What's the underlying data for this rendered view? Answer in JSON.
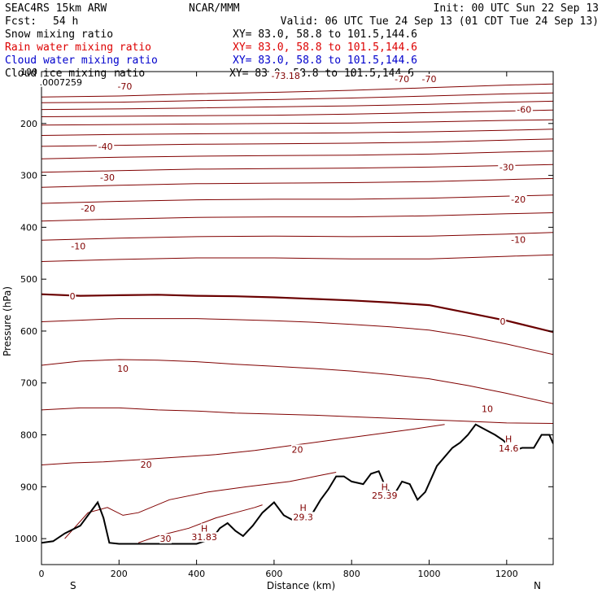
{
  "header": {
    "model": "SEAC4RS 15km ARW",
    "org": "NCAR/MMM",
    "init": "Init: 00 UTC Sun 22 Sep 13",
    "fcst_label": "Fcst:",
    "fcst_value": "54 h",
    "valid": "Valid: 06 UTC Tue 24 Sep 13 (01 CDT Tue 24 Sep 13)"
  },
  "fields": [
    {
      "name": "Snow mixing ratio",
      "xy": "XY=  83.0, 58.8 to 101.5,144.6",
      "color": "#000000"
    },
    {
      "name": "Rain water mixing ratio",
      "xy": "XY=  83.0, 58.8 to 101.5,144.6",
      "color": "#dd0000"
    },
    {
      "name": "Cloud water mixing ratio",
      "xy": "XY=  83.0, 58.8 to 101.5,144.6",
      "color": "#0000cc"
    },
    {
      "name": "Cloud ice mixing ratio",
      "xy": "XY=  83.0, 58.8 to 101.5,144.6",
      "color": "#000000"
    }
  ],
  "chart_data": {
    "type": "line",
    "title": "SEAC4RS 15km ARW",
    "xlabel": "Distance (km)",
    "ylabel": "Pressure (hPa)",
    "xlim": [
      0,
      1320
    ],
    "ylim": [
      1050,
      100
    ],
    "x_ticks": [
      "0",
      "200",
      "400",
      "600",
      "800",
      "1000",
      "1200"
    ],
    "y_ticks": [
      "100",
      "200",
      "300",
      "400",
      "500",
      "600",
      "700",
      "800",
      "900",
      "1000"
    ],
    "x_end_labels": {
      "left": "S",
      "right": "N"
    },
    "contour_color": "#800000",
    "contour_bold_color": "#6a0000",
    "series": [
      {
        "level": -70,
        "x": [
          0,
          200,
          400,
          600,
          800,
          1000,
          1200,
          1320
        ],
        "y": [
          149,
          147,
          143,
          140,
          136,
          131,
          126,
          124
        ]
      },
      {
        "level": -65,
        "x": [
          0,
          200,
          400,
          600,
          800,
          1000,
          1200,
          1320
        ],
        "y": [
          160,
          159,
          156,
          154,
          151,
          147,
          143,
          141
        ]
      },
      {
        "level": -60,
        "x": [
          0,
          200,
          400,
          600,
          800,
          1000,
          1200,
          1320
        ],
        "y": [
          173,
          172,
          170,
          168,
          166,
          163,
          159,
          157
        ]
      },
      {
        "level": -55,
        "x": [
          0,
          200,
          400,
          600,
          800,
          1000,
          1200,
          1320
        ],
        "y": [
          187,
          186,
          185,
          184,
          182,
          179,
          176,
          174
        ]
      },
      {
        "level": -50,
        "x": [
          0,
          200,
          400,
          600,
          800,
          1000,
          1200,
          1320
        ],
        "y": [
          203,
          202,
          201,
          200,
          199,
          197,
          194,
          193
        ]
      },
      {
        "level": -45,
        "x": [
          0,
          200,
          400,
          600,
          800,
          1000,
          1200,
          1320
        ],
        "y": [
          223,
          221,
          220,
          219,
          218,
          216,
          213,
          211
        ]
      },
      {
        "level": -40,
        "x": [
          0,
          200,
          400,
          600,
          800,
          1000,
          1200,
          1320
        ],
        "y": [
          244,
          242,
          240,
          239,
          238,
          236,
          232,
          230
        ]
      },
      {
        "level": -35,
        "x": [
          0,
          200,
          400,
          600,
          800,
          1000,
          1200,
          1320
        ],
        "y": [
          268,
          265,
          263,
          262,
          261,
          259,
          255,
          253
        ]
      },
      {
        "level": -30,
        "x": [
          0,
          200,
          400,
          600,
          800,
          1000,
          1200,
          1320
        ],
        "y": [
          294,
          291,
          288,
          287,
          286,
          284,
          281,
          279
        ]
      },
      {
        "level": -25,
        "x": [
          0,
          200,
          400,
          600,
          800,
          1000,
          1200,
          1320
        ],
        "y": [
          323,
          319,
          316,
          315,
          314,
          312,
          308,
          306
        ]
      },
      {
        "level": -20,
        "x": [
          0,
          200,
          400,
          600,
          800,
          1000,
          1200,
          1320
        ],
        "y": [
          354,
          350,
          347,
          346,
          346,
          344,
          340,
          338
        ]
      },
      {
        "level": -15,
        "x": [
          0,
          200,
          400,
          600,
          800,
          1000,
          1200,
          1320
        ],
        "y": [
          388,
          384,
          381,
          380,
          380,
          378,
          374,
          372
        ]
      },
      {
        "level": -10,
        "x": [
          0,
          200,
          400,
          600,
          800,
          1000,
          1200,
          1320
        ],
        "y": [
          425,
          421,
          418,
          417,
          418,
          417,
          413,
          410
        ]
      },
      {
        "level": -5,
        "x": [
          0,
          200,
          400,
          600,
          800,
          1000,
          1200,
          1320
        ],
        "y": [
          466,
          462,
          459,
          459,
          461,
          461,
          456,
          453
        ]
      },
      {
        "level": 0,
        "bold": true,
        "x": [
          0,
          100,
          200,
          300,
          400,
          500,
          600,
          700,
          800,
          900,
          1000,
          1100,
          1200,
          1320
        ],
        "y": [
          529,
          532,
          531,
          530,
          532,
          533,
          535,
          538,
          541,
          545,
          550,
          565,
          580,
          602
        ]
      },
      {
        "level": 5,
        "x": [
          0,
          100,
          200,
          300,
          400,
          500,
          600,
          700,
          800,
          900,
          1000,
          1100,
          1200,
          1320
        ],
        "y": [
          582,
          579,
          576,
          576,
          576,
          578,
          580,
          583,
          587,
          592,
          598,
          610,
          625,
          645
        ]
      },
      {
        "level": 10,
        "x": [
          0,
          100,
          200,
          300,
          400,
          500,
          600,
          700,
          800,
          900,
          1000,
          1100,
          1200,
          1320
        ],
        "y": [
          666,
          658,
          655,
          656,
          659,
          664,
          668,
          672,
          677,
          684,
          692,
          705,
          720,
          740
        ]
      },
      {
        "level": 15,
        "x": [
          0,
          100,
          200,
          300,
          400,
          500,
          600,
          700,
          800,
          900,
          1000,
          1100,
          1200,
          1320
        ],
        "y": [
          752,
          748,
          748,
          752,
          754,
          758,
          760,
          762,
          765,
          768,
          771,
          774,
          777,
          778
        ]
      },
      {
        "level": 20,
        "x": [
          0,
          80,
          160,
          250,
          350,
          450,
          550,
          650,
          750,
          850,
          950,
          1040
        ],
        "y": [
          858,
          854,
          852,
          848,
          843,
          838,
          830,
          820,
          810,
          800,
          790,
          780
        ]
      },
      {
        "level": 25,
        "x": [
          60,
          120,
          170,
          210,
          250,
          330,
          430,
          530,
          640,
          720,
          760
        ],
        "y": [
          1000,
          950,
          940,
          955,
          950,
          925,
          910,
          900,
          890,
          878,
          872
        ]
      },
      {
        "level": 30,
        "x": [
          250,
          300,
          380,
          450,
          500,
          550,
          570
        ],
        "y": [
          1008,
          995,
          980,
          960,
          950,
          940,
          935
        ]
      }
    ],
    "terrain": {
      "x": [
        0,
        30,
        60,
        100,
        120,
        145,
        160,
        175,
        200,
        250,
        300,
        350,
        400,
        440,
        460,
        480,
        500,
        520,
        545,
        570,
        600,
        625,
        650,
        680,
        700,
        720,
        740,
        760,
        780,
        800,
        830,
        850,
        870,
        890,
        910,
        930,
        950,
        970,
        990,
        1020,
        1060,
        1080,
        1100,
        1120,
        1140,
        1170,
        1190,
        1220,
        1240,
        1270,
        1290,
        1310,
        1320
      ],
      "y": [
        1008,
        1005,
        990,
        975,
        955,
        930,
        960,
        1008,
        1010,
        1010,
        1010,
        1010,
        1010,
        1000,
        980,
        970,
        985,
        995,
        975,
        950,
        930,
        955,
        965,
        965,
        950,
        925,
        905,
        880,
        880,
        890,
        895,
        875,
        870,
        905,
        915,
        890,
        895,
        925,
        910,
        860,
        825,
        815,
        800,
        780,
        788,
        800,
        810,
        830,
        825,
        825,
        800,
        800,
        817
      ]
    },
    "annotations": [
      {
        "text": ".0007259",
        "x": 50,
        "y": 120
      },
      {
        "text": "-73.18",
        "x": 630,
        "y": 108
      },
      {
        "text": "-70",
        "x": 215,
        "y": 128
      },
      {
        "text": "-70",
        "x": 930,
        "y": 114
      },
      {
        "text": "-70",
        "x": 1000,
        "y": 114
      },
      {
        "text": "-60",
        "x": 1245,
        "y": 173
      },
      {
        "text": "-40",
        "x": 165,
        "y": 244
      },
      {
        "text": "-30",
        "x": 170,
        "y": 304
      },
      {
        "text": "-30",
        "x": 1200,
        "y": 284
      },
      {
        "text": "-20",
        "x": 120,
        "y": 363
      },
      {
        "text": "-20",
        "x": 1230,
        "y": 346
      },
      {
        "text": "-10",
        "x": 95,
        "y": 436
      },
      {
        "text": "-10",
        "x": 1230,
        "y": 424
      },
      {
        "text": "0",
        "x": 80,
        "y": 533
      },
      {
        "text": "0",
        "x": 1190,
        "y": 581
      },
      {
        "text": "10",
        "x": 210,
        "y": 672
      },
      {
        "text": "10",
        "x": 1150,
        "y": 750
      },
      {
        "text": "20",
        "x": 270,
        "y": 857
      },
      {
        "text": "20",
        "x": 660,
        "y": 828
      },
      {
        "text": "30",
        "x": 320,
        "y": 1000
      },
      {
        "text": "H",
        "x": 420,
        "y": 980
      },
      {
        "text": "31.83",
        "x": 420,
        "y": 997
      },
      {
        "text": "H",
        "x": 675,
        "y": 940
      },
      {
        "text": "29.3",
        "x": 675,
        "y": 958
      },
      {
        "text": "H",
        "x": 885,
        "y": 900
      },
      {
        "text": "25.39",
        "x": 885,
        "y": 917
      },
      {
        "text": "H",
        "x": 1205,
        "y": 808
      },
      {
        "text": "14.6",
        "x": 1205,
        "y": 826
      }
    ]
  }
}
